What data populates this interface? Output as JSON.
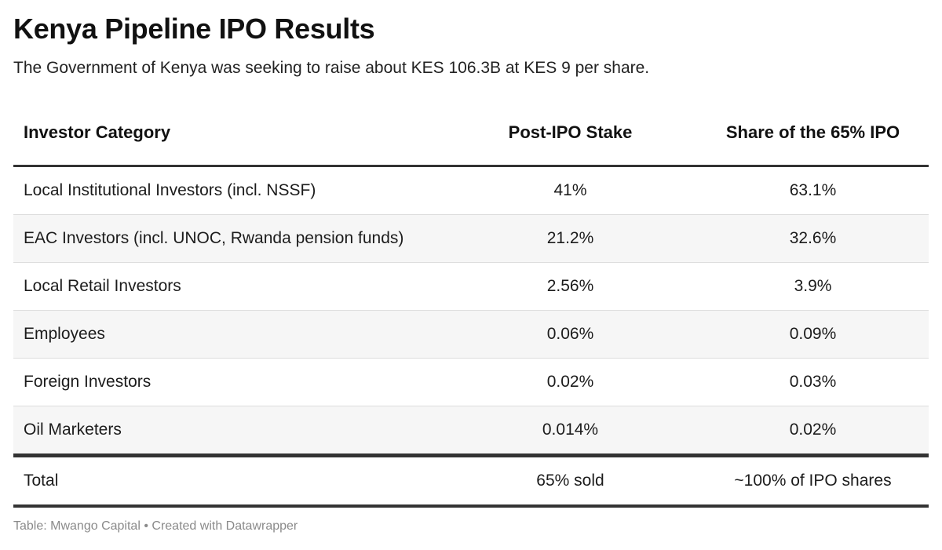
{
  "title": "Kenya Pipeline IPO Results",
  "subtitle": "The Government of Kenya was seeking to raise about KES 106.3B at KES 9 per share.",
  "chart_data": {
    "type": "table",
    "columns": [
      "Investor Category",
      "Post-IPO Stake",
      "Share of the 65% IPO"
    ],
    "rows": [
      [
        "Local Institutional Investors (incl. NSSF)",
        "41%",
        "63.1%"
      ],
      [
        "EAC Investors (incl. UNOC, Rwanda pension funds)",
        "21.2%",
        "32.6%"
      ],
      [
        "Local Retail Investors",
        "2.56%",
        "3.9%"
      ],
      [
        "Employees",
        "0.06%",
        "0.09%"
      ],
      [
        "Foreign Investors",
        "0.02%",
        "0.03%"
      ],
      [
        "Oil Marketers",
        "0.014%",
        "0.02%"
      ]
    ],
    "total": [
      "Total",
      "65% sold",
      "~100% of IPO shares"
    ]
  },
  "source": {
    "label": "Table: Mwango Capital",
    "separator": "•",
    "credit": "Created with Datawrapper"
  }
}
